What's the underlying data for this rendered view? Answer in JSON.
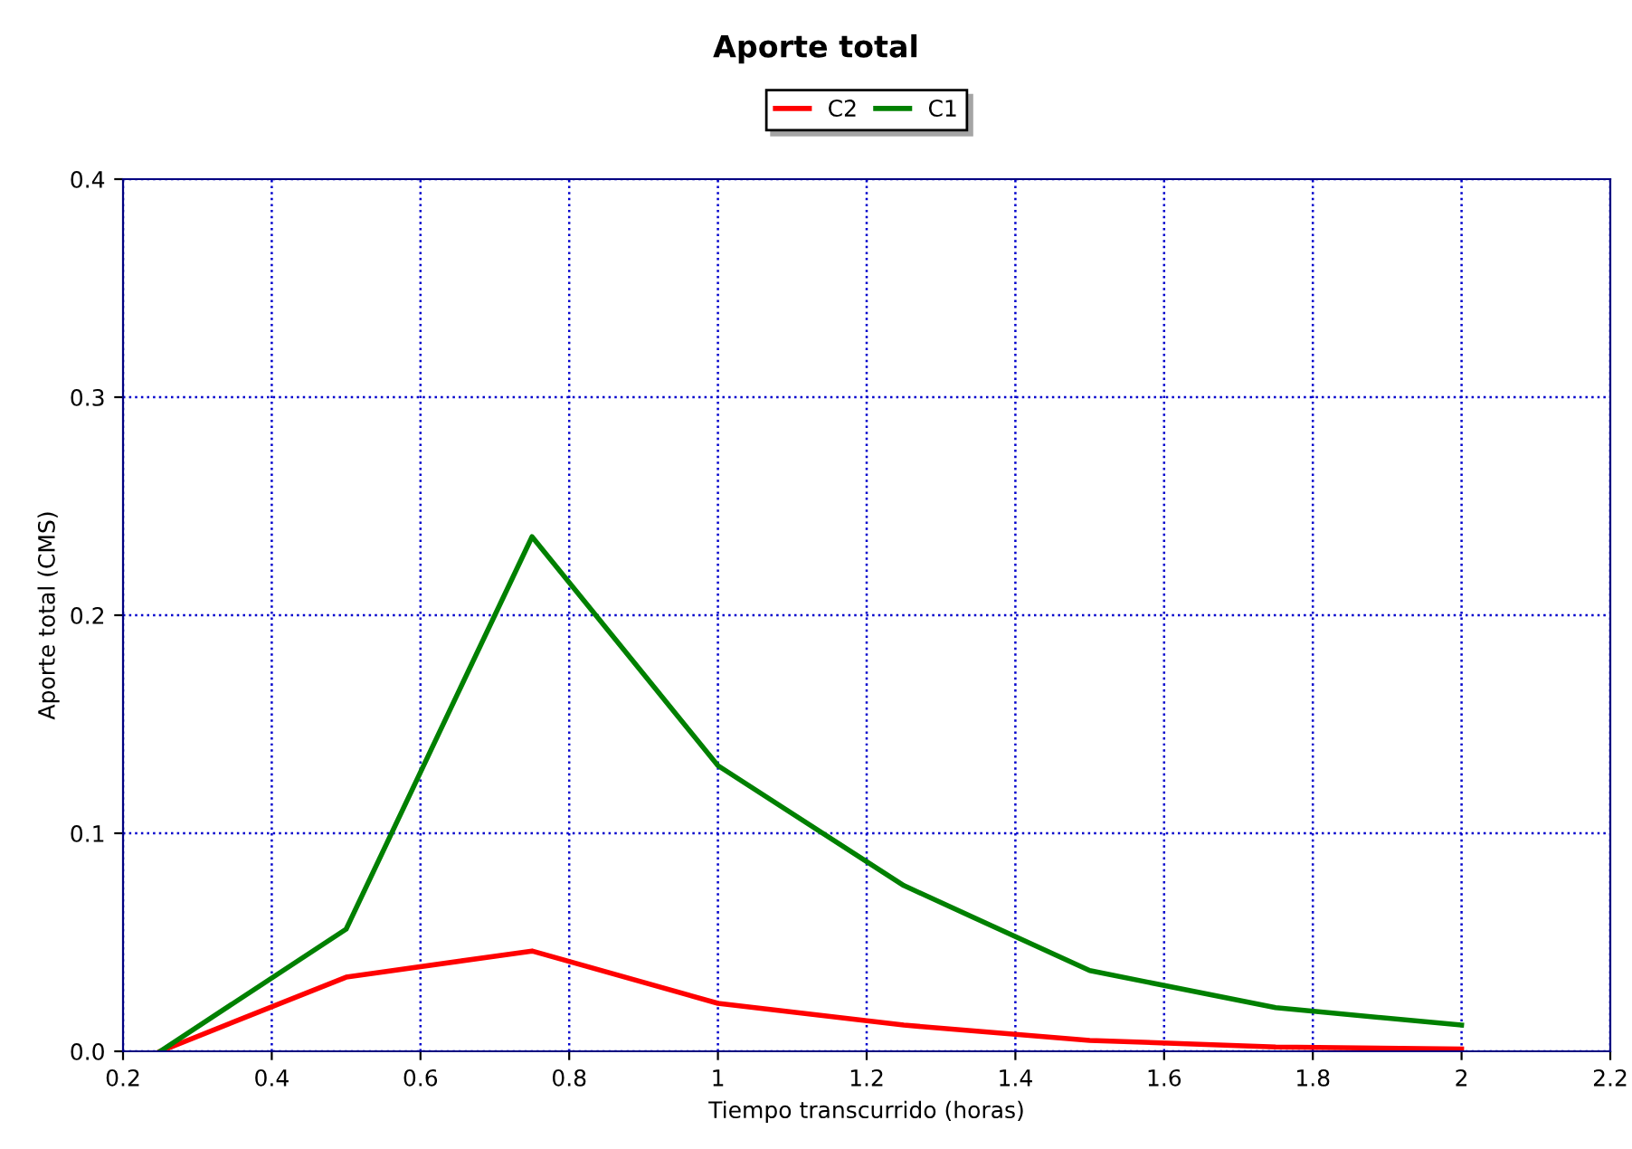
{
  "chart_data": {
    "type": "line",
    "title": "Aporte total",
    "xlabel": "Tiempo transcurrido (horas)",
    "ylabel": "Aporte total (CMS)",
    "x": [
      0.25,
      0.5,
      0.75,
      1.0,
      1.25,
      1.5,
      1.75,
      2.0
    ],
    "series": [
      {
        "name": "C2",
        "color": "#ff0000",
        "values": [
          0,
          0.034,
          0.046,
          0.022,
          0.012,
          0.005,
          0.002,
          0.001
        ]
      },
      {
        "name": "C1",
        "color": "#008000",
        "values": [
          0,
          0.056,
          0.236,
          0.131,
          0.076,
          0.037,
          0.02,
          0.012
        ]
      }
    ],
    "xlim": [
      0.2,
      2.2
    ],
    "xticks": [
      0.2,
      0.4,
      0.6,
      0.8,
      1,
      1.2,
      1.4,
      1.6,
      1.8,
      2,
      2.2
    ],
    "ylim": [
      0,
      0.4
    ],
    "yticks": [
      {
        "value": 0,
        "label": "0.0"
      },
      0.1,
      0.2,
      0.3,
      0.4
    ],
    "grid": true,
    "legend": "top",
    "marker": "none",
    "line_style": "solid"
  }
}
